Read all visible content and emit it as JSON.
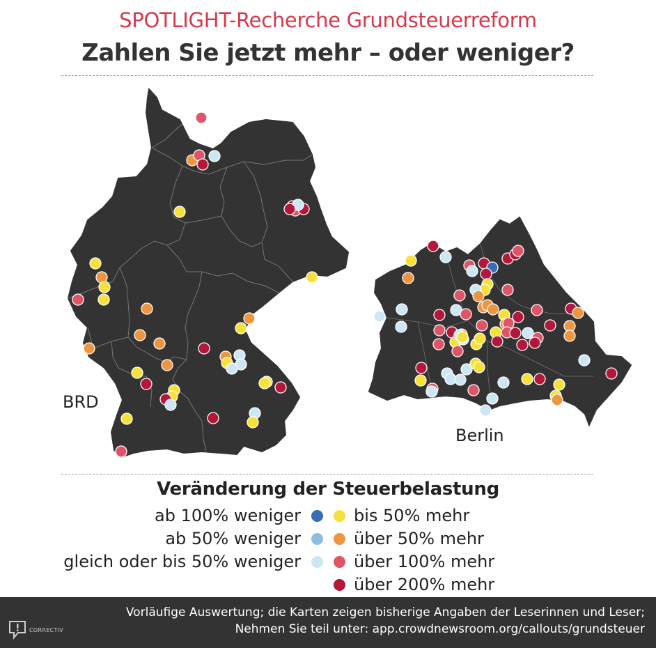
{
  "header": {
    "kicker": "SPOTLIGHT-Recherche Grundsteuerreform",
    "title": "Zahlen Sie jetzt mehr – oder weniger?"
  },
  "maps": {
    "germany_label": "BRD",
    "berlin_label": "Berlin"
  },
  "legend": {
    "title": "Veränderung der Steuerbelastung",
    "left_items": [
      {
        "label": "ab 100% weniger",
        "color": "#3a6db5"
      },
      {
        "label": "ab 50% weniger",
        "color": "#8fbddf"
      },
      {
        "label": "gleich oder bis 50% weniger",
        "color": "#cce6f4"
      }
    ],
    "right_items": [
      {
        "label": "bis 50% mehr",
        "color": "#f6e03a"
      },
      {
        "label": "über 50% mehr",
        "color": "#ee9540"
      },
      {
        "label": "über 100% mehr",
        "color": "#e05468"
      },
      {
        "label": "über 200% mehr",
        "color": "#b5173a"
      }
    ]
  },
  "footer": {
    "line1": "Vorläufige Auswertung; die Karten zeigen bisherige Angaben der Leserinnen und Leser;",
    "line2": "Nehmen Sie teil unter: app.crowdnewsroom.org/callouts/grundsteuer",
    "logo_text": "CORRECTIV",
    "logo_icon": "speech-bubble-exclamation-icon"
  },
  "colors": {
    "map_fill": "#333333",
    "accent_red": "#d9374a"
  }
}
